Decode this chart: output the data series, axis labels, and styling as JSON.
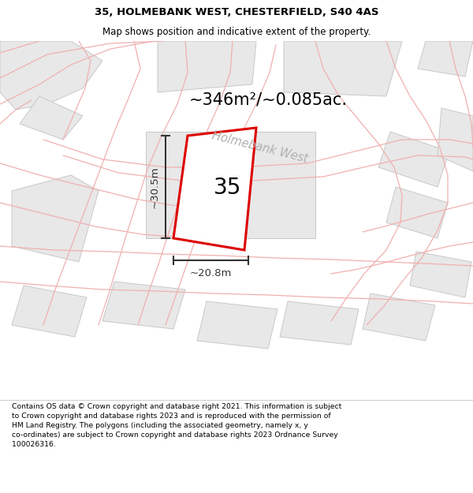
{
  "title": "35, HOLMEBANK WEST, CHESTERFIELD, S40 4AS",
  "subtitle": "Map shows position and indicative extent of the property.",
  "area_label": "~346m²/~0.085ac.",
  "street_label": "Holmebank West",
  "plot_number": "35",
  "dim_width": "~20.8m",
  "dim_height": "~30.5m",
  "footer_lines": [
    "Contains OS data © Crown copyright and database right 2021. This information is subject",
    "to Crown copyright and database rights 2023 and is reproduced with the permission of",
    "HM Land Registry. The polygons (including the associated geometry, namely x, y",
    "co-ordinates) are subject to Crown copyright and database rights 2023 Ordnance Survey",
    "100026316."
  ],
  "map_bg": "#ffffff",
  "plot_fill": "#ffffff",
  "plot_stroke": "#dd0000",
  "road_line_color": "#f0b0b0",
  "building_fill": "#e8e8e8",
  "building_stroke": "#c8c8c8",
  "dim_color": "#333333",
  "title_color": "#000000",
  "street_label_color": "#b0b0b0"
}
